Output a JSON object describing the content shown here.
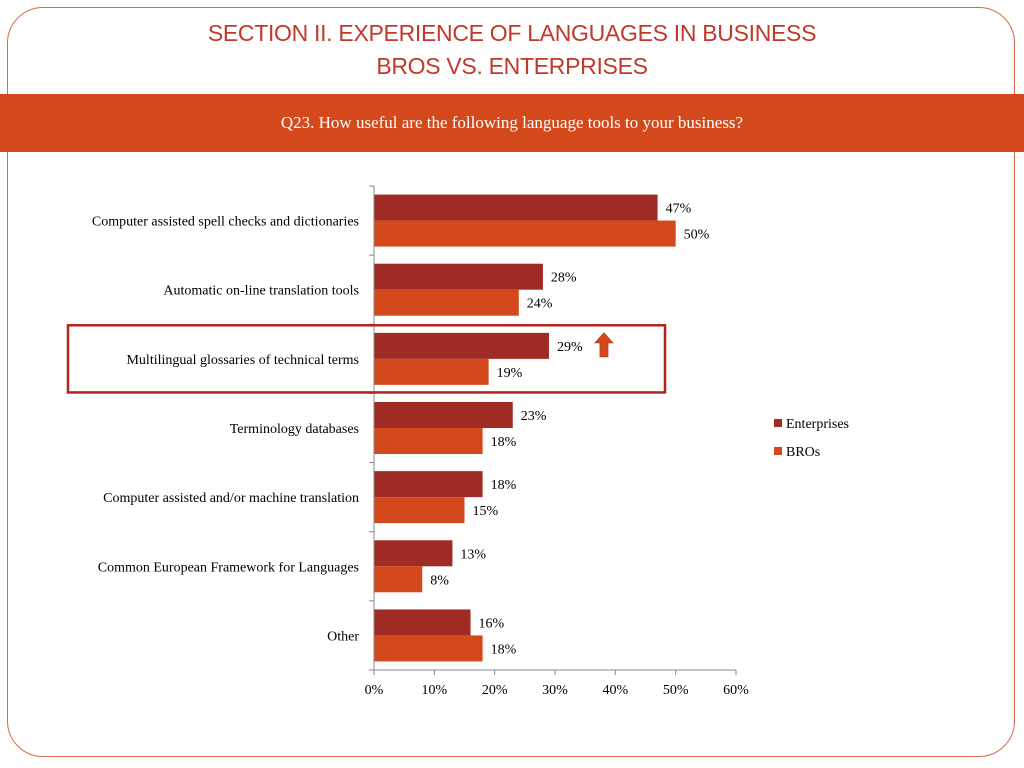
{
  "slide": {
    "title_line1": "SECTION II. EXPERIENCE OF LANGUAGES IN BUSINESS",
    "title_line2": "BROS VS. ENTERPRISES",
    "question": "Q23. How useful are the following language tools to your business?"
  },
  "colors": {
    "enterprises": "#a02b25",
    "bros": "#d4491c",
    "highlight": "#b3231e",
    "arrow": "#d4491c"
  },
  "chart_data": {
    "type": "bar",
    "orientation": "horizontal",
    "categories": [
      "Computer assisted spell checks and dictionaries",
      "Automatic on-line translation tools",
      "Multilingual glossaries of technical terms",
      "Terminology databases",
      "Computer assisted and/or machine translation",
      "Common European Framework for Languages",
      "Other"
    ],
    "series": [
      {
        "name": "Enterprises",
        "values": [
          47,
          28,
          29,
          23,
          18,
          13,
          16
        ],
        "labels": [
          "47%",
          "28%",
          "29%",
          "23%",
          "18%",
          "13%",
          "16%"
        ]
      },
      {
        "name": "BROs",
        "values": [
          50,
          24,
          19,
          18,
          15,
          8,
          18
        ],
        "labels": [
          "50%",
          "24%",
          "19%",
          "18%",
          "15%",
          "8%",
          "18%"
        ]
      }
    ],
    "xlim": [
      0,
      60
    ],
    "x_ticks": [
      "0%",
      "10%",
      "20%",
      "30%",
      "40%",
      "50%",
      "60%"
    ],
    "legend_position": "right",
    "highlighted_category": "Multilingual glossaries of technical terms",
    "annotation": "up-arrow"
  }
}
